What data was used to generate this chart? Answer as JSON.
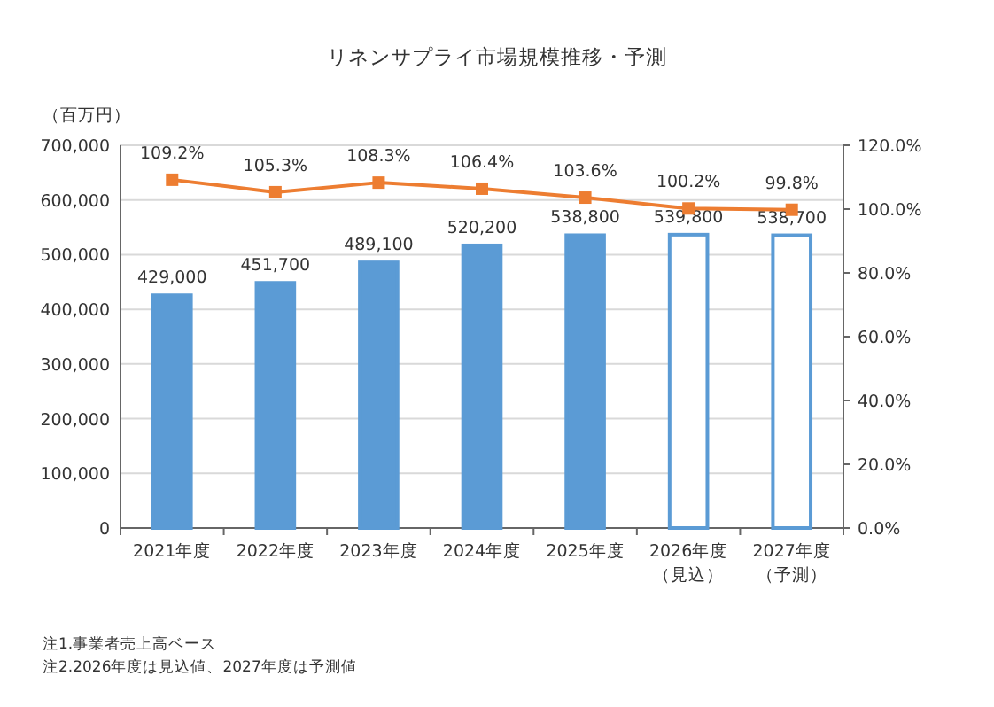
{
  "chart_data": {
    "type": "bar",
    "title": "リネンサプライ市場規模推移・予測",
    "ylabel": "（百万円）",
    "categories": [
      "2021年度",
      "2022年度",
      "2023年度",
      "2024年度",
      "2025年度",
      "2026年度（見込）",
      "2027年度（予測）"
    ],
    "series": [
      {
        "color": "#5b9bd5",
        "colors": [
          "#5b9bd5",
          "#5b9bd5",
          "#5b9bd5",
          "#5b9bd5",
          "#5b9bd5",
          "#ffffff",
          "#ffffff"
        ],
        "values": [
          429000,
          451700,
          489100,
          520200,
          538800,
          539800,
          538700
        ],
        "value_labels": [
          "429,000",
          "451,700",
          "489,100",
          "520,200",
          "538,800",
          "539,800",
          "538,700"
        ]
      },
      {
        "type": "line",
        "axis": "y2",
        "color": "#ed7d31",
        "marker": "square",
        "values": [
          109.2,
          105.3,
          108.3,
          106.4,
          103.6,
          100.2,
          99.8
        ],
        "value_labels": [
          "109.2%",
          "105.3%",
          "108.3%",
          "106.4%",
          "103.6%",
          "100.2%",
          "99.8%"
        ]
      }
    ],
    "ylim": [
      0,
      700000
    ],
    "yticks": [
      0,
      {
        "value": 100000,
        "label": "100,000"
      },
      {
        "value": 200000,
        "label": "200,000"
      },
      {
        "value": 300000,
        "label": "300,000"
      },
      {
        "value": 400000,
        "label": "400,000"
      },
      {
        "value": 500000,
        "label": "500,000"
      },
      {
        "value": 600000,
        "label": "600,000"
      },
      {
        "value": 700000,
        "label": "700,000"
      }
    ],
    "y2lim": [
      0,
      120
    ],
    "y2ticks": [
      {
        "value": 0,
        "label": "0.0%"
      },
      {
        "value": 20,
        "label": "20.0%"
      },
      {
        "value": 40,
        "label": "40.0%"
      },
      {
        "value": 60,
        "label": "60.0%"
      },
      {
        "value": 80,
        "label": "80.0%"
      },
      {
        "value": 100,
        "label": "100.0%"
      },
      {
        "value": 120,
        "label": "120.0%"
      }
    ],
    "grid": "y",
    "annotations": [
      "注1.事業者売上高ベース",
      "注2.2026年度は見込値、2027年度は予測値"
    ]
  }
}
